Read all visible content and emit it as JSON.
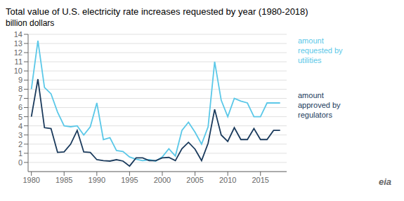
{
  "chart_data": {
    "type": "line",
    "title": "Total value of U.S. electricity rate increases requested by year (1980-2018)",
    "y_label": "billion dollars",
    "x": [
      1980,
      1981,
      1982,
      1983,
      1984,
      1985,
      1986,
      1987,
      1988,
      1989,
      1990,
      1991,
      1992,
      1993,
      1994,
      1995,
      1996,
      1997,
      1998,
      1999,
      2000,
      2001,
      2002,
      2003,
      2004,
      2005,
      2006,
      2007,
      2008,
      2009,
      2010,
      2011,
      2012,
      2013,
      2014,
      2015,
      2016,
      2017,
      2018
    ],
    "series": [
      {
        "name": "amount\nrequested by\nutilities",
        "color": "#5bc8e8",
        "values": [
          8.0,
          13.3,
          8.2,
          7.5,
          5.5,
          4.0,
          3.9,
          4.0,
          3.0,
          3.9,
          6.5,
          2.5,
          2.7,
          1.3,
          1.2,
          0.6,
          0.35,
          0.2,
          0.3,
          0.15,
          0.6,
          1.5,
          0.7,
          3.5,
          4.4,
          3.3,
          2.0,
          3.9,
          11.0,
          6.8,
          5.0,
          7.0,
          6.7,
          6.5,
          5.0,
          5.0,
          6.5,
          6.5,
          6.5
        ]
      },
      {
        "name": "amount\napproved by\nregulators",
        "color": "#1a3a5c",
        "values": [
          5.0,
          9.1,
          3.8,
          3.7,
          1.1,
          1.15,
          2.0,
          3.5,
          1.15,
          1.1,
          0.3,
          0.2,
          0.15,
          0.3,
          0.15,
          -0.4,
          0.5,
          0.5,
          0.2,
          0.2,
          0.5,
          0.55,
          0.2,
          1.5,
          2.2,
          1.45,
          0.2,
          2.1,
          5.8,
          3.0,
          2.3,
          3.8,
          2.5,
          2.5,
          3.7,
          2.5,
          2.5,
          3.5,
          3.5
        ]
      }
    ],
    "xlim": [
      1979.5,
      2019
    ],
    "xticks": [
      1980,
      1985,
      1990,
      1995,
      2000,
      2005,
      2010,
      2015
    ],
    "ylim": [
      -1,
      14
    ],
    "yticks": [
      0,
      1,
      2,
      3,
      4,
      5,
      6,
      7,
      8,
      9,
      10,
      11,
      12,
      13,
      14
    ],
    "grid": true,
    "annotations": [
      "eia"
    ]
  }
}
